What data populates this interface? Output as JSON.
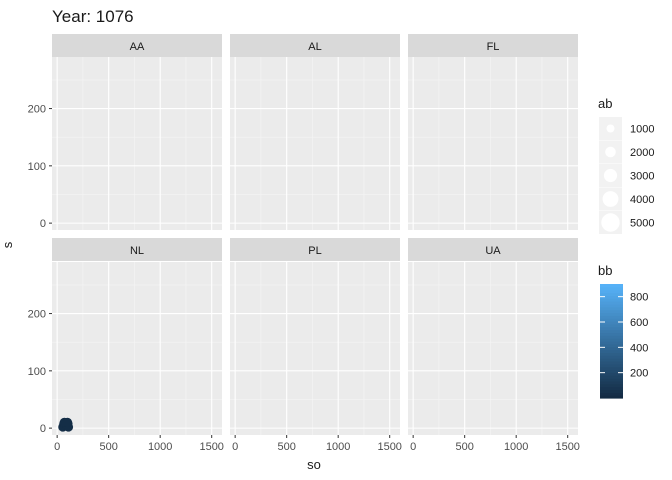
{
  "chart_data": {
    "type": "scatter",
    "title": "Year: 1076",
    "xlabel": "so",
    "ylabel": "s",
    "xlim": [
      -50,
      1600
    ],
    "ylim": [
      -12,
      290
    ],
    "x_ticks": [
      0,
      500,
      1000,
      1500
    ],
    "y_ticks": [
      0,
      100,
      200
    ],
    "grid": true,
    "facets": [
      {
        "label": "AA",
        "points": []
      },
      {
        "label": "AL",
        "points": []
      },
      {
        "label": "FL",
        "points": []
      },
      {
        "label": "NL",
        "points": [
          {
            "x": 55,
            "y": 2,
            "ab": 800,
            "bb": 20
          },
          {
            "x": 65,
            "y": 8,
            "ab": 800,
            "bb": 20
          },
          {
            "x": 75,
            "y": 4,
            "ab": 800,
            "bb": 20
          },
          {
            "x": 85,
            "y": 7,
            "ab": 800,
            "bb": 20
          },
          {
            "x": 95,
            "y": 3,
            "ab": 800,
            "bb": 20
          },
          {
            "x": 105,
            "y": 8,
            "ab": 800,
            "bb": 20
          },
          {
            "x": 110,
            "y": 2,
            "ab": 800,
            "bb": 20
          },
          {
            "x": 70,
            "y": 10,
            "ab": 800,
            "bb": 20
          },
          {
            "x": 100,
            "y": 10,
            "ab": 800,
            "bb": 20
          }
        ]
      },
      {
        "label": "PL",
        "points": []
      },
      {
        "label": "UA",
        "points": []
      }
    ],
    "legends": [
      {
        "title": "ab",
        "type": "size",
        "values": [
          1000,
          2000,
          3000,
          4000,
          5000
        ]
      },
      {
        "title": "bb",
        "type": "color",
        "breaks": [
          200,
          400,
          600,
          800
        ],
        "range": [
          0,
          900
        ],
        "low_color": "#132b43",
        "high_color": "#56b1f7"
      }
    ],
    "colors": {
      "panel": "#ebebeb",
      "strip": "#d9d9d9",
      "grid": "#ffffff"
    }
  }
}
